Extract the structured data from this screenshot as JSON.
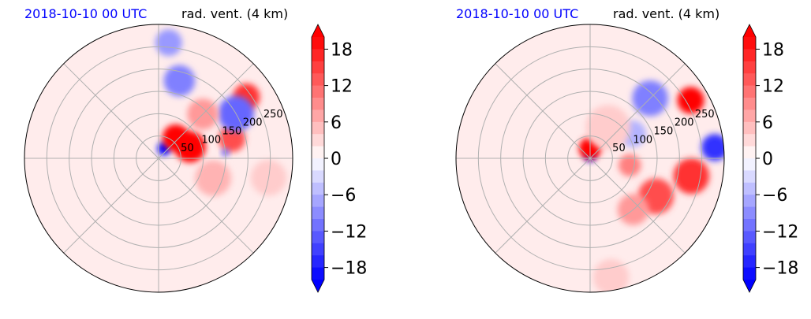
{
  "chart_data": [
    {
      "type": "heatmap",
      "projection": "polar",
      "title_left": "2018-10-10 00 UTC",
      "title_right": "rad. vent. (4 km)",
      "radial_ticks": [
        50,
        100,
        150,
        200,
        250
      ],
      "rlim": [
        0,
        300
      ],
      "colorbar": {
        "ticks": [
          18,
          12,
          6,
          0,
          -6,
          -12,
          -18
        ],
        "tick_labels": [
          "18",
          "12",
          "6",
          "0",
          "−6",
          "−12",
          "−18"
        ],
        "vmin": -20,
        "vmax": 20,
        "extend": "both",
        "cmap": "bwr"
      },
      "features": [
        {
          "az": 30,
          "r": 25,
          "value": -20,
          "size": 15
        },
        {
          "az": 40,
          "r": 60,
          "value": 20,
          "size": 30
        },
        {
          "az": 70,
          "r": 75,
          "value": 20,
          "size": 35
        },
        {
          "az": 75,
          "r": 170,
          "value": 14,
          "size": 30
        },
        {
          "az": 55,
          "r": 240,
          "value": 16,
          "size": 30
        },
        {
          "az": 60,
          "r": 200,
          "value": -12,
          "size": 40
        },
        {
          "az": 15,
          "r": 180,
          "value": -10,
          "size": 35
        },
        {
          "az": 5,
          "r": 260,
          "value": -8,
          "size": 30
        },
        {
          "az": 45,
          "r": 140,
          "value": 8,
          "size": 35
        },
        {
          "az": 110,
          "r": 130,
          "value": 6,
          "size": 40
        },
        {
          "az": 85,
          "r": 150,
          "value": -14,
          "size": 8
        },
        {
          "az": 100,
          "r": 250,
          "value": 4,
          "size": 40
        }
      ]
    },
    {
      "type": "heatmap",
      "projection": "polar",
      "title_left": "2018-10-10 00 UTC",
      "title_right": "rad. vent. (4 km)",
      "radial_ticks": [
        50,
        100,
        150,
        200,
        250
      ],
      "rlim": [
        0,
        300
      ],
      "colorbar": {
        "ticks": [
          18,
          12,
          6,
          0,
          -6,
          -12,
          -18
        ],
        "tick_labels": [
          "18",
          "12",
          "6",
          "0",
          "−6",
          "−12",
          "−18"
        ],
        "vmin": -20,
        "vmax": 20,
        "extend": "both",
        "cmap": "bwr"
      },
      "features": [
        {
          "az": 0,
          "r": 5,
          "value": -20,
          "size": 12
        },
        {
          "az": 0,
          "r": 22,
          "value": 20,
          "size": 25
        },
        {
          "az": 100,
          "r": 90,
          "value": 10,
          "size": 25
        },
        {
          "az": 60,
          "r": 260,
          "value": 20,
          "size": 30
        },
        {
          "az": 85,
          "r": 280,
          "value": -16,
          "size": 30
        },
        {
          "az": 100,
          "r": 230,
          "value": 16,
          "size": 40
        },
        {
          "az": 120,
          "r": 170,
          "value": 14,
          "size": 40
        },
        {
          "az": 45,
          "r": 190,
          "value": -10,
          "size": 40
        },
        {
          "az": 60,
          "r": 110,
          "value": -6,
          "size": 30
        },
        {
          "az": 140,
          "r": 150,
          "value": 8,
          "size": 35
        },
        {
          "az": 30,
          "r": 80,
          "value": 4,
          "size": 50
        },
        {
          "az": 170,
          "r": 270,
          "value": 4,
          "size": 40
        }
      ]
    }
  ]
}
